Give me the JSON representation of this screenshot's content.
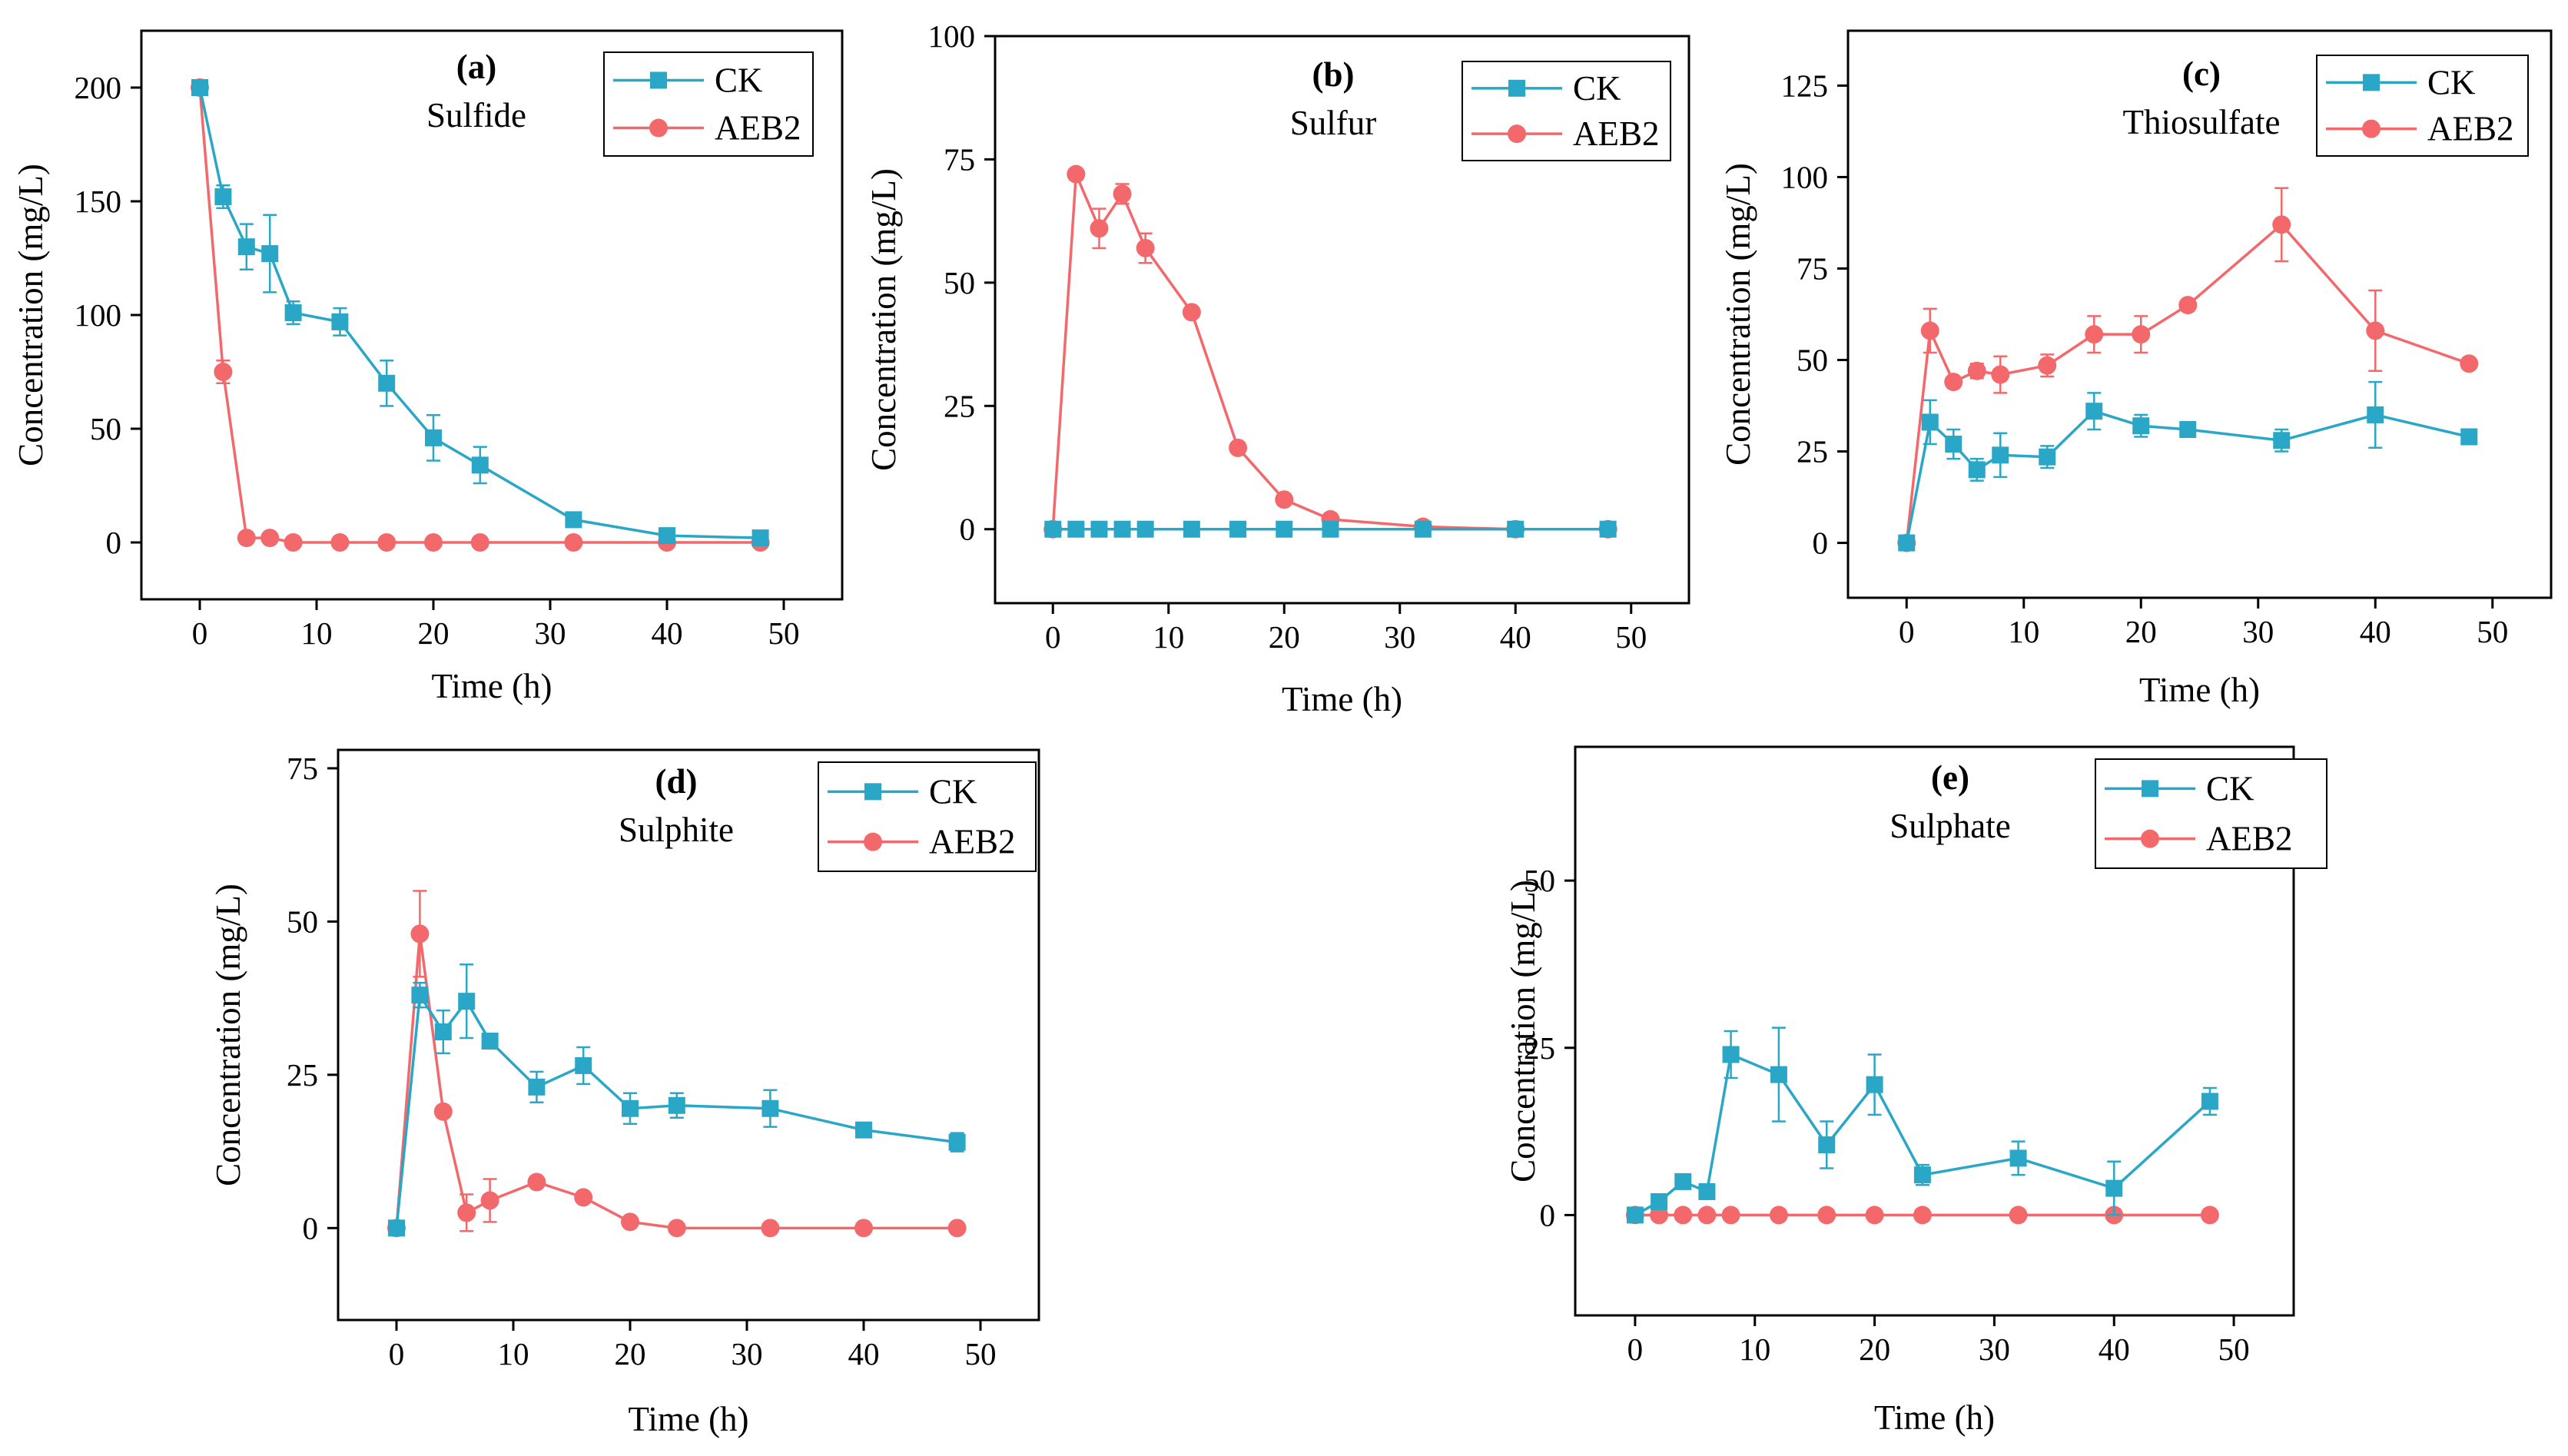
{
  "colors": {
    "ck": "#2aa6c6",
    "aeb2": "#f2686b",
    "axis": "#000000"
  },
  "chart_data": [
    {
      "type": "line",
      "letter": "(a)",
      "name": "Sulfide",
      "xlabel": "Time (h)",
      "ylabel": "Concentration (mg/L)",
      "xlim": [
        -5,
        55
      ],
      "ylim": [
        -25,
        225
      ],
      "xticks": [
        0,
        10,
        20,
        30,
        40,
        50
      ],
      "yticks": [
        0,
        50,
        100,
        150,
        200
      ],
      "legend": [
        "CK",
        "AEB2"
      ],
      "series": [
        {
          "name": "CK",
          "marker": "square",
          "x": [
            0,
            2,
            4,
            6,
            8,
            12,
            16,
            20,
            24,
            32,
            40,
            48
          ],
          "y": [
            200,
            152,
            130,
            127,
            101,
            97,
            70,
            46,
            34,
            10,
            3,
            2
          ],
          "err": [
            0,
            5,
            10,
            17,
            5,
            6,
            10,
            10,
            8,
            2,
            1,
            1
          ]
        },
        {
          "name": "AEB2",
          "marker": "circle",
          "x": [
            0,
            2,
            4,
            6,
            8,
            12,
            16,
            20,
            24,
            32,
            40,
            48
          ],
          "y": [
            200,
            75,
            2,
            2,
            0,
            0,
            0,
            0,
            0,
            0,
            0,
            0
          ],
          "err": [
            0,
            5,
            0,
            0,
            0,
            0,
            0,
            0,
            0,
            0,
            0,
            0
          ]
        }
      ]
    },
    {
      "type": "line",
      "letter": "(b)",
      "name": "Sulfur",
      "xlabel": "Time (h)",
      "ylabel": "Concentration (mg/L)",
      "xlim": [
        -5,
        55
      ],
      "ylim": [
        -15,
        100
      ],
      "xticks": [
        0,
        10,
        20,
        30,
        40,
        50
      ],
      "yticks": [
        0,
        25,
        50,
        75,
        100
      ],
      "legend": [
        "CK",
        "AEB2"
      ],
      "series": [
        {
          "name": "CK",
          "marker": "square",
          "x": [
            0,
            2,
            4,
            6,
            8,
            12,
            16,
            20,
            24,
            32,
            40,
            48
          ],
          "y": [
            0,
            0,
            0,
            0,
            0,
            0,
            0,
            0,
            0,
            0,
            0,
            0
          ],
          "err": [
            0,
            0,
            0,
            0,
            0,
            0,
            0,
            0,
            0,
            0,
            0,
            0
          ]
        },
        {
          "name": "AEB2",
          "marker": "circle",
          "x": [
            0,
            2,
            4,
            6,
            8,
            12,
            16,
            20,
            24,
            32,
            40,
            48
          ],
          "y": [
            0,
            72,
            61,
            68,
            57,
            44,
            16.5,
            6,
            2,
            0.5,
            0,
            0
          ],
          "err": [
            0,
            0,
            4,
            2,
            3,
            0,
            0,
            0,
            0,
            0,
            0,
            0
          ]
        }
      ]
    },
    {
      "type": "line",
      "letter": "(c)",
      "name": "Thiosulfate",
      "xlabel": "Time (h)",
      "ylabel": "Concentration (mg/L)",
      "xlim": [
        -5,
        55
      ],
      "ylim": [
        -15,
        140
      ],
      "xticks": [
        0,
        10,
        20,
        30,
        40,
        50
      ],
      "yticks": [
        0,
        25,
        50,
        75,
        100,
        125
      ],
      "legend": [
        "CK",
        "AEB2"
      ],
      "series": [
        {
          "name": "CK",
          "marker": "square",
          "x": [
            0,
            2,
            4,
            6,
            8,
            12,
            16,
            20,
            24,
            32,
            40,
            48
          ],
          "y": [
            0,
            33,
            27,
            20,
            24,
            23.5,
            36,
            32,
            31,
            28,
            35,
            29
          ],
          "err": [
            0,
            6,
            4,
            3,
            6,
            3,
            5,
            3,
            0,
            3,
            9,
            0
          ]
        },
        {
          "name": "AEB2",
          "marker": "circle",
          "x": [
            0,
            2,
            4,
            6,
            8,
            12,
            16,
            20,
            24,
            32,
            40,
            48
          ],
          "y": [
            0,
            58,
            44,
            47,
            46,
            48.5,
            57,
            57,
            65,
            87,
            58,
            49
          ],
          "err": [
            0,
            6,
            0,
            2,
            5,
            3,
            5,
            5,
            0,
            10,
            11,
            0
          ]
        }
      ]
    },
    {
      "type": "line",
      "letter": "(d)",
      "name": "Sulphite",
      "xlabel": "Time (h)",
      "ylabel": "Concentration (mg/L)",
      "xlim": [
        -5,
        55
      ],
      "ylim": [
        -15,
        78
      ],
      "xticks": [
        0,
        10,
        20,
        30,
        40,
        50
      ],
      "yticks": [
        0,
        25,
        50,
        75
      ],
      "legend": [
        "CK",
        "AEB2"
      ],
      "series": [
        {
          "name": "CK",
          "marker": "square",
          "x": [
            0,
            2,
            4,
            6,
            8,
            12,
            16,
            20,
            24,
            32,
            40,
            48
          ],
          "y": [
            0,
            38,
            32,
            37,
            30.5,
            23,
            26.5,
            19.5,
            20,
            19.5,
            16,
            14
          ],
          "err": [
            0,
            2,
            3.5,
            6,
            0,
            2.5,
            3,
            2.5,
            2,
            3,
            1,
            1.5
          ]
        },
        {
          "name": "AEB2",
          "marker": "circle",
          "x": [
            0,
            2,
            4,
            6,
            8,
            12,
            16,
            20,
            24,
            32,
            40,
            48
          ],
          "y": [
            0,
            48,
            19,
            2.5,
            4.5,
            7.5,
            5,
            1,
            0,
            0,
            0,
            0
          ],
          "err": [
            0,
            7,
            0,
            3,
            3.5,
            0,
            0,
            0,
            0,
            0,
            0,
            0
          ]
        }
      ]
    },
    {
      "type": "line",
      "letter": "(e)",
      "name": "Sulphate",
      "xlabel": "Time (h)",
      "ylabel": "Concentration (mg/L)",
      "xlim": [
        -5,
        55
      ],
      "ylim": [
        -15,
        70
      ],
      "xticks": [
        0,
        10,
        20,
        30,
        40,
        50
      ],
      "yticks": [
        0,
        25,
        50
      ],
      "legend": [
        "CK",
        "AEB2"
      ],
      "series": [
        {
          "name": "CK",
          "marker": "square",
          "x": [
            0,
            2,
            4,
            6,
            8,
            12,
            16,
            20,
            24,
            32,
            40,
            48
          ],
          "y": [
            0,
            2,
            5,
            3.5,
            24,
            21,
            10.5,
            19.5,
            6,
            8.5,
            4,
            17
          ],
          "err": [
            0,
            0,
            0,
            0,
            3.5,
            7,
            3.5,
            4.5,
            1.5,
            2.5,
            4,
            2
          ]
        },
        {
          "name": "AEB2",
          "marker": "circle",
          "x": [
            0,
            2,
            4,
            6,
            8,
            12,
            16,
            20,
            24,
            32,
            40,
            48
          ],
          "y": [
            0,
            0,
            0,
            0,
            0,
            0,
            0,
            0,
            0,
            0,
            0,
            0
          ],
          "err": [
            0,
            0,
            0,
            0,
            0,
            0,
            0,
            0,
            0,
            0,
            0,
            0
          ]
        }
      ]
    }
  ]
}
